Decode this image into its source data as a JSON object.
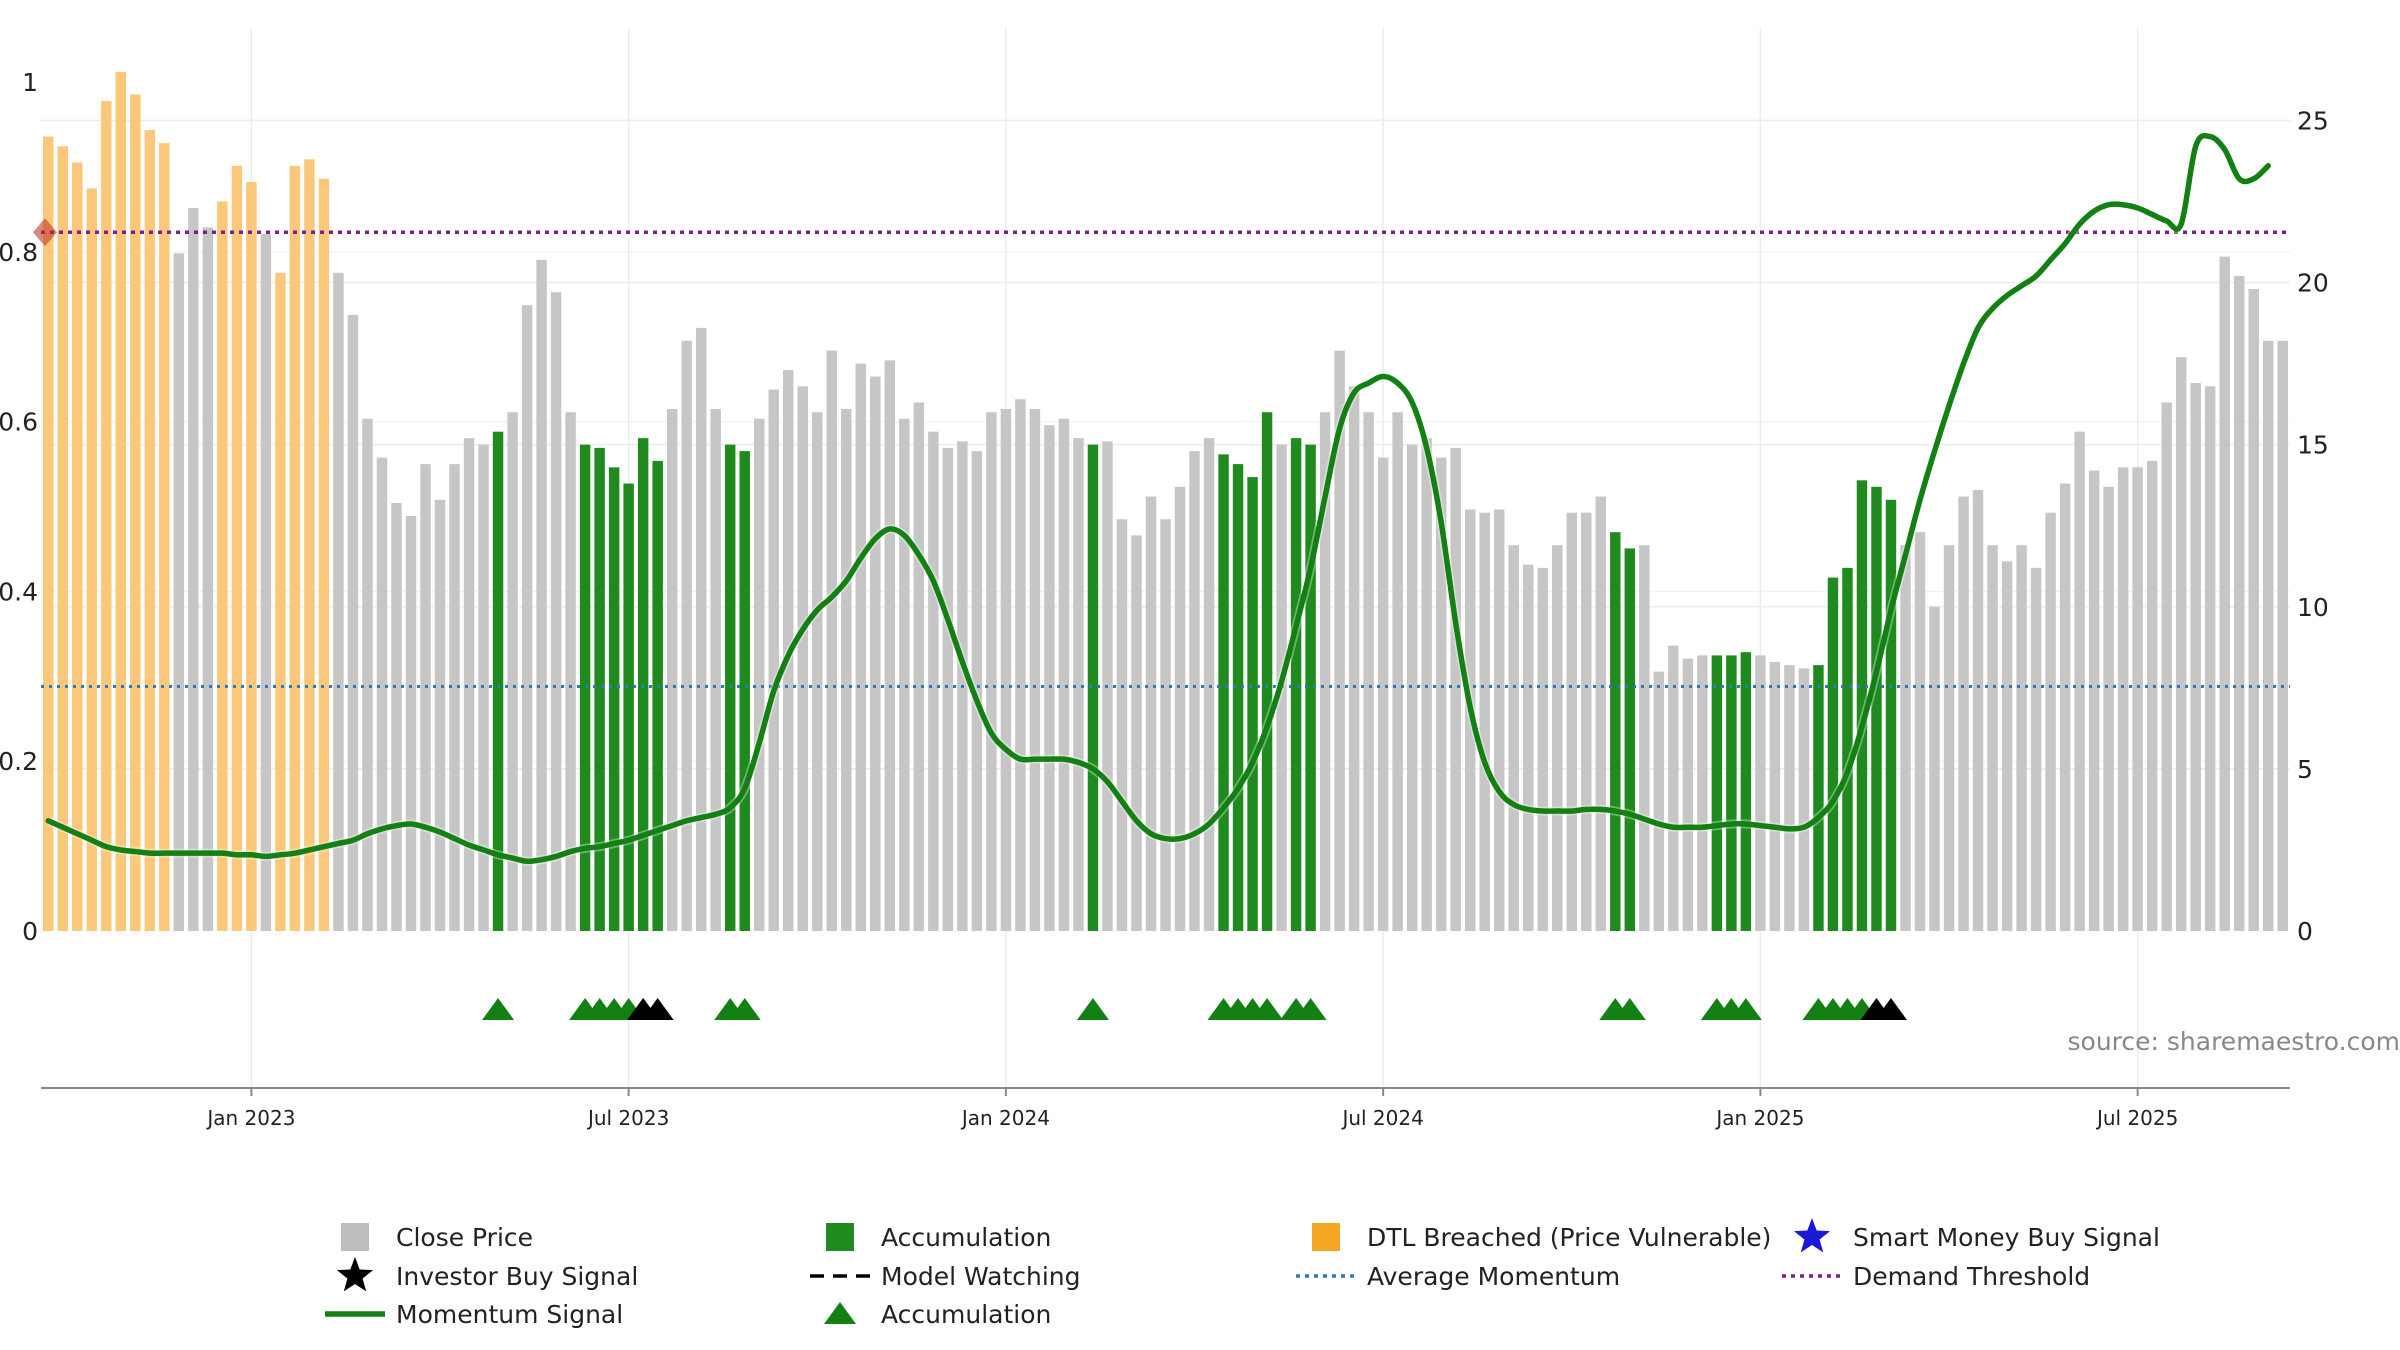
{
  "chart_data": {
    "type": "bar",
    "left_axis": {
      "ylim": [
        0,
        1
      ],
      "ticks": [
        "0",
        "0.2",
        "0.4",
        "0.6",
        "0.8",
        "1"
      ]
    },
    "right_axis": {
      "ylim": [
        0,
        27.85
      ],
      "ticks": [
        "0",
        "5",
        "10",
        "15",
        "20",
        "25"
      ]
    },
    "x_ticks": [
      "Jan 2023",
      "Jul 2023",
      "Jan 2024",
      "Jul 2024",
      "Jan 2025",
      "Jul 2025"
    ],
    "grid": true,
    "legend_position": "bottom",
    "bar_categories": [
      "close",
      "accumulation",
      "dtl"
    ],
    "close_price": [
      24.5,
      24.2,
      23.7,
      22.9,
      25.6,
      26.5,
      25.8,
      24.7,
      24.3,
      20.9,
      22.3,
      21.7,
      22.5,
      23.6,
      23.1,
      21.5,
      20.3,
      23.6,
      23.8,
      23.2,
      20.3,
      19.0,
      15.8,
      14.6,
      13.2,
      12.8,
      14.4,
      13.3,
      14.4,
      15.2,
      15.0,
      15.4,
      16.0,
      19.3,
      20.7,
      19.7,
      16.0,
      15.0,
      14.9,
      14.3,
      13.8,
      15.2,
      14.5,
      16.1,
      18.2,
      18.6,
      16.1,
      15.0,
      14.8,
      15.8,
      16.7,
      17.3,
      16.8,
      16.0,
      17.9,
      16.1,
      17.5,
      17.1,
      17.6,
      15.8,
      16.3,
      15.4,
      14.9,
      15.1,
      14.8,
      16.0,
      16.1,
      16.4,
      16.1,
      15.6,
      15.8,
      15.2,
      15.0,
      15.1,
      12.7,
      12.2,
      13.4,
      12.7,
      13.7,
      14.8,
      15.2,
      14.7,
      14.4,
      14.0,
      16.0,
      15.0,
      15.2,
      15.0,
      16.0,
      17.9,
      16.8,
      16.0,
      14.6,
      16.0,
      15.0,
      15.2,
      14.6,
      14.9,
      13.0,
      12.9,
      13.0,
      11.9,
      11.3,
      11.2,
      11.9,
      12.9,
      12.9,
      13.4,
      12.3,
      11.8,
      11.9,
      8.0,
      8.8,
      8.4,
      8.5,
      8.5,
      8.5,
      8.6,
      8.5,
      8.3,
      8.2,
      8.1,
      8.2,
      10.9,
      11.2,
      13.9,
      13.7,
      13.3,
      11.9,
      12.3,
      10.0,
      11.9,
      13.4,
      13.6,
      11.9,
      11.4,
      11.9,
      11.2,
      12.9,
      13.8,
      15.4,
      14.2,
      13.7,
      14.3,
      14.3,
      14.5,
      16.3,
      17.7,
      16.9,
      16.8,
      20.8,
      20.2,
      19.8,
      18.2,
      18.2
    ],
    "accumulation_bars": [
      31,
      37,
      38,
      39,
      40,
      41,
      42,
      47,
      48,
      72,
      81,
      82,
      83,
      84,
      86,
      87,
      108,
      109,
      115,
      116,
      117,
      122,
      123,
      124,
      125,
      126,
      127
    ],
    "dtl_breached_bars": [
      0,
      1,
      2,
      3,
      4,
      5,
      6,
      7,
      8,
      12,
      13,
      14,
      16,
      17,
      18,
      19
    ],
    "momentum_signal": [
      3.4,
      3.2,
      3.0,
      2.8,
      2.6,
      2.5,
      2.45,
      2.4,
      2.4,
      2.4,
      2.4,
      2.4,
      2.4,
      2.35,
      2.35,
      2.3,
      2.35,
      2.4,
      2.5,
      2.6,
      2.7,
      2.8,
      3.0,
      3.15,
      3.25,
      3.3,
      3.2,
      3.05,
      2.85,
      2.65,
      2.5,
      2.35,
      2.25,
      2.15,
      2.2,
      2.3,
      2.45,
      2.55,
      2.6,
      2.7,
      2.8,
      2.95,
      3.1,
      3.25,
      3.4,
      3.5,
      3.6,
      3.8,
      4.4,
      5.8,
      7.4,
      8.5,
      9.3,
      9.9,
      10.3,
      10.8,
      11.5,
      12.1,
      12.4,
      12.2,
      11.6,
      10.8,
      9.6,
      8.3,
      7.1,
      6.1,
      5.6,
      5.3,
      5.3,
      5.3,
      5.3,
      5.2,
      5.0,
      4.6,
      4.0,
      3.4,
      3.0,
      2.85,
      2.85,
      3.0,
      3.3,
      3.8,
      4.4,
      5.2,
      6.3,
      7.7,
      9.4,
      11.2,
      13.4,
      15.5,
      16.6,
      16.9,
      17.1,
      16.9,
      16.3,
      14.9,
      12.6,
      9.5,
      6.9,
      5.2,
      4.3,
      3.9,
      3.75,
      3.7,
      3.7,
      3.7,
      3.75,
      3.75,
      3.7,
      3.6,
      3.45,
      3.3,
      3.2,
      3.2,
      3.2,
      3.25,
      3.3,
      3.3,
      3.25,
      3.2,
      3.15,
      3.2,
      3.5,
      4.0,
      4.9,
      6.3,
      8.0,
      9.9,
      11.6,
      13.3,
      14.8,
      16.2,
      17.5,
      18.6,
      19.2,
      19.6,
      19.9,
      20.2,
      20.7,
      21.2,
      21.8,
      22.2,
      22.4,
      22.4,
      22.3,
      22.1,
      21.9,
      21.8,
      24.2,
      24.5,
      24.1,
      23.2,
      23.2,
      23.6
    ],
    "markers": {
      "accumulation_triangles": [
        31,
        37,
        38,
        39,
        40,
        41,
        47,
        48,
        72,
        81,
        82,
        83,
        84,
        86,
        87,
        108,
        109,
        115,
        116,
        117,
        122,
        123,
        124,
        125
      ],
      "investor_buy_triangles": [
        41,
        42,
        126,
        127
      ]
    },
    "average_momentum": 0.288,
    "demand_threshold": 0.823,
    "annotation": "source: sharemaestro.com",
    "legend": [
      {
        "label": "Close Price",
        "symbol": "square",
        "color": "#bdbdbd"
      },
      {
        "label": "Accumulation",
        "symbol": "square",
        "color": "#1a8a1a"
      },
      {
        "label": "DTL Breached (Price Vulnerable)",
        "symbol": "square",
        "color": "#f5a623"
      },
      {
        "label": "Smart Money Buy Signal",
        "symbol": "star",
        "color": "#1a1ad6"
      },
      {
        "label": "Investor Buy Signal",
        "symbol": "star",
        "color": "#000000"
      },
      {
        "label": "Model Watching",
        "symbol": "dash",
        "color": "#000000"
      },
      {
        "label": "Average Momentum",
        "symbol": "dot-line",
        "color": "#2c7bb6"
      },
      {
        "label": "Demand Threshold",
        "symbol": "dot-line",
        "color": "#7b1f8a"
      },
      {
        "label": "Momentum Signal",
        "symbol": "line",
        "color": "#138013"
      },
      {
        "label": "Accumulation",
        "symbol": "triangle",
        "color": "#138013"
      }
    ]
  },
  "colors": {
    "close": "#c6c6c6",
    "accumulation": "#1f8b1f",
    "dtl": "#fbc77a",
    "momentum": "#138013",
    "average_momentum": "#2c7bb6",
    "demand_threshold": "#7b1f8a",
    "grid": "#ececec",
    "axis": "#888888"
  }
}
